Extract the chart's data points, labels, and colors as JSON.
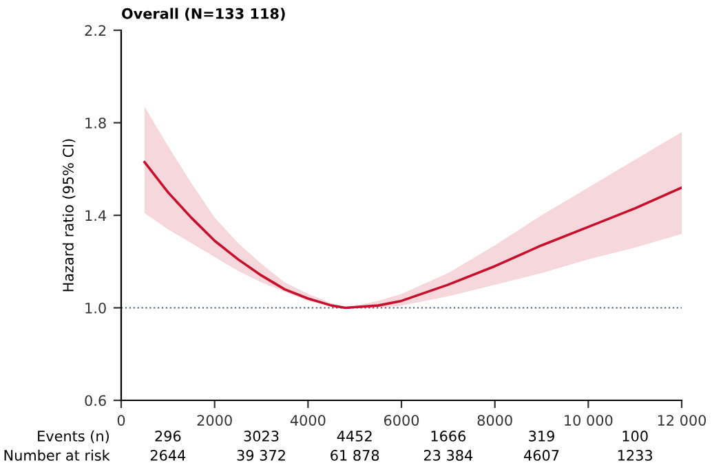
{
  "chart_data": {
    "type": "line",
    "title": "Overall (N=133 118)",
    "ylabel": "Hazard ratio (95% CI)",
    "xlim": [
      0,
      12000
    ],
    "xticks": [
      0,
      2000,
      4000,
      6000,
      8000,
      {
        "value": 10000,
        "label": "10 000"
      },
      {
        "value": 12000,
        "label": "12 000"
      }
    ],
    "ylim": [
      0.6,
      2.2
    ],
    "yticks": [
      0.6,
      {
        "value": 1.0,
        "label": "1.0"
      },
      1.4,
      1.8,
      2.2
    ],
    "grid": false,
    "legend": false,
    "marker": "none",
    "line_style": "solid",
    "series": [
      {
        "color": "#c8102e",
        "x": [
          500,
          1000,
          1500,
          2000,
          2500,
          3000,
          3500,
          4000,
          4500,
          4800,
          5500,
          6000,
          7000,
          8000,
          9000,
          10000,
          11000,
          12000
        ],
        "values": [
          1.63,
          1.5,
          1.39,
          1.29,
          1.21,
          1.14,
          1.08,
          1.04,
          1.01,
          1.0,
          1.01,
          1.03,
          1.1,
          1.18,
          1.27,
          1.35,
          1.43,
          1.52
        ],
        "lower": [
          1.41,
          1.34,
          1.28,
          1.22,
          1.16,
          1.11,
          1.07,
          1.03,
          1.01,
          1.0,
          1.0,
          1.01,
          1.05,
          1.1,
          1.15,
          1.21,
          1.26,
          1.32
        ],
        "upper": [
          1.87,
          1.7,
          1.54,
          1.39,
          1.28,
          1.19,
          1.11,
          1.06,
          1.02,
          1.0,
          1.03,
          1.06,
          1.15,
          1.27,
          1.4,
          1.52,
          1.64,
          1.76
        ]
      }
    ],
    "ref_lines": [
      {
        "axis": "y",
        "value": 1.0,
        "color": "#4a6272",
        "line_style": "dotted"
      }
    ],
    "annotations": [
      "Events (n)",
      "296",
      "3023",
      "4452",
      "1666",
      "319",
      "100",
      "Number at risk",
      "2644",
      "39 372",
      "61 878",
      "23 384",
      "4607",
      "1233"
    ]
  }
}
